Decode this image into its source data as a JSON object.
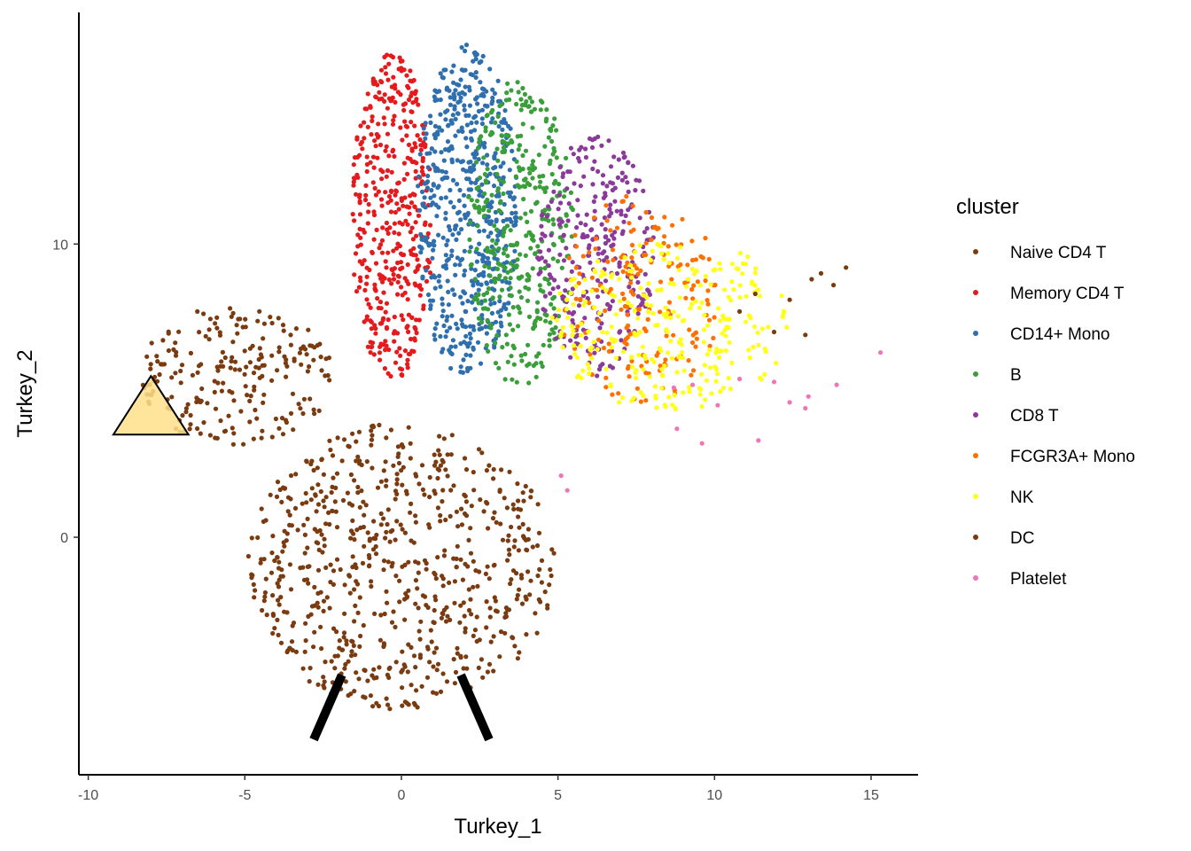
{
  "chart_data": {
    "type": "scatter",
    "xlabel": "Turkey_1",
    "ylabel": "Turkey_2",
    "xlim": [
      -10.3,
      16.5
    ],
    "ylim": [
      -8.1,
      17.9
    ],
    "x_ticks": [
      -10,
      -5,
      0,
      5,
      10,
      15
    ],
    "y_ticks": [
      0,
      10
    ],
    "x_tick_labels": [
      "-10",
      "-5",
      "0",
      "5",
      "10",
      "15"
    ],
    "y_tick_labels": [
      "0",
      "10"
    ],
    "grid": false,
    "legend": {
      "title": "cluster",
      "position": "right",
      "entries": [
        {
          "label": "Naive CD4 T",
          "color": "#7a3b10"
        },
        {
          "label": "Memory CD4 T",
          "color": "#e41a1c"
        },
        {
          "label": "CD14+ Mono",
          "color": "#2f6fae"
        },
        {
          "label": "B",
          "color": "#3a9e3a"
        },
        {
          "label": "CD8 T",
          "color": "#8a3b9a"
        },
        {
          "label": "FCGR3A+ Mono",
          "color": "#ff7000"
        },
        {
          "label": "NK",
          "color": "#ffff1a"
        },
        {
          "label": "DC",
          "color": "#7a3b10"
        },
        {
          "label": "Platelet",
          "color": "#f075b8"
        }
      ]
    },
    "series": [
      {
        "name": "Naive CD4 T",
        "color": "#7a3b10",
        "shape": "circle",
        "cx": 0,
        "cy": -1,
        "rx": 4.9,
        "ry": 4.9,
        "count": 700,
        "seed": 11
      },
      {
        "name": "DC",
        "color": "#7a3b10",
        "shape": "ellipse",
        "cx": -5.3,
        "cy": 5.5,
        "rx": 3.1,
        "ry": 2.4,
        "count": 220,
        "seed": 23
      },
      {
        "name": "Memory CD4 T",
        "color": "#e41a1c",
        "shape": "ellipse",
        "cx": -0.3,
        "cy": 10.9,
        "rx": 1.3,
        "ry": 5.6,
        "count": 430,
        "seed": 37
      },
      {
        "name": "CD14+ Mono",
        "color": "#2f6fae",
        "shape": "ellipse",
        "cx": 2.1,
        "cy": 11.1,
        "rx": 1.6,
        "ry": 5.7,
        "count": 560,
        "seed": 41
      },
      {
        "name": "B",
        "color": "#3a9e3a",
        "shape": "ellipse",
        "cx": 3.8,
        "cy": 10.4,
        "rx": 1.7,
        "ry": 5.3,
        "count": 380,
        "seed": 53
      },
      {
        "name": "CD8 T",
        "color": "#8a3b9a",
        "shape": "ellipse",
        "cx": 6.2,
        "cy": 9.6,
        "rx": 1.9,
        "ry": 4.1,
        "count": 290,
        "seed": 67
      },
      {
        "name": "FCGR3A+ Mono",
        "color": "#ff7000",
        "shape": "ellipse",
        "cx": 7.6,
        "cy": 8.1,
        "rx": 2.6,
        "ry": 3.6,
        "count": 190,
        "seed": 79
      },
      {
        "name": "NK",
        "color": "#ffff1a",
        "shape": "ellipse",
        "cx": 8.6,
        "cy": 7.3,
        "rx": 3.8,
        "ry": 3.0,
        "count": 290,
        "seed": 83
      },
      {
        "name": "Platelet",
        "color": "#f075b8",
        "shape": "points",
        "x": [
          15.3,
          13.9,
          13.0,
          12.9,
          12.4,
          11.9,
          11.4,
          10.8,
          9.6,
          8.8,
          8.7,
          9.3,
          10.1,
          5.1,
          5.3
        ],
        "y": [
          6.3,
          5.2,
          4.8,
          4.4,
          4.6,
          5.3,
          3.3,
          5.4,
          3.2,
          3.7,
          5.1,
          5.2,
          4.5,
          2.1,
          1.6
        ]
      },
      {
        "name": "DC",
        "color": "#7a3b10",
        "shape": "points",
        "x": [
          14.2,
          13.8,
          13.4,
          12.4,
          11.9,
          10.8,
          12.9,
          13.1,
          11.3
        ],
        "y": [
          9.2,
          8.6,
          9.0,
          8.1,
          7.0,
          7.7,
          6.9,
          8.8,
          8.3
        ]
      }
    ],
    "annotations": {
      "beak": {
        "points": [
          [
            -9.2,
            3.5
          ],
          [
            -8.0,
            5.5
          ],
          [
            -6.8,
            3.5
          ]
        ],
        "fill": "#ffe08a"
      },
      "legs": [
        [
          [
            -1.9,
            -4.7
          ],
          [
            -2.8,
            -6.9
          ]
        ],
        [
          [
            1.9,
            -4.7
          ],
          [
            2.8,
            -6.9
          ]
        ]
      ]
    }
  }
}
